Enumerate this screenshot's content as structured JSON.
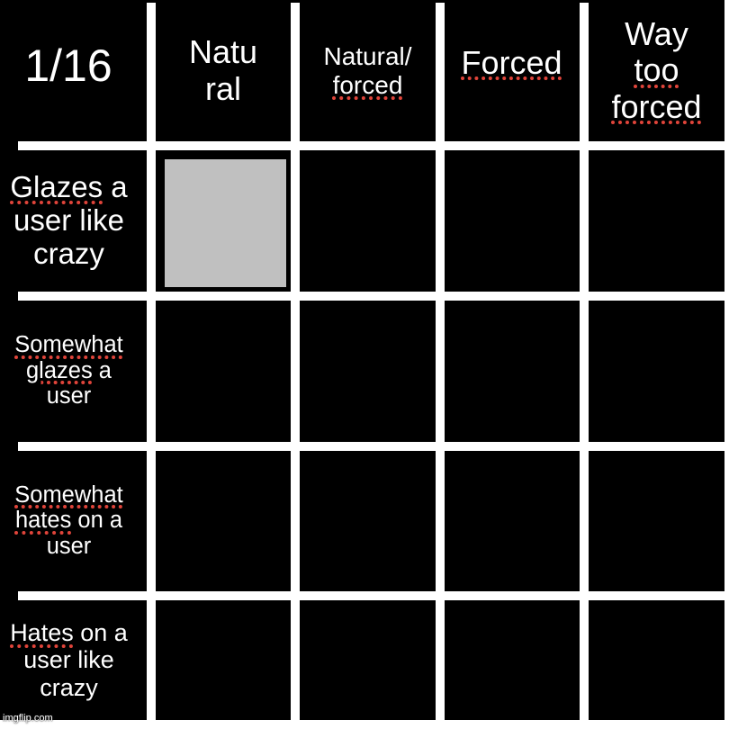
{
  "counter": "1/16",
  "columns": [
    {
      "lines": [
        [
          {
            "t": "Natu",
            "u": false
          }
        ],
        [
          {
            "t": "ral",
            "u": false
          }
        ]
      ]
    },
    {
      "lines": [
        [
          {
            "t": "Natural/",
            "u": false
          }
        ],
        [
          {
            "t": "forced",
            "u": true
          }
        ]
      ]
    },
    {
      "lines": [
        [
          {
            "t": "Forced",
            "u": true
          }
        ]
      ]
    },
    {
      "lines": [
        [
          {
            "t": "Way",
            "u": false
          }
        ],
        [
          {
            "t": "too",
            "u": true
          }
        ],
        [
          {
            "t": "forced",
            "u": true
          }
        ]
      ]
    }
  ],
  "rows": [
    {
      "lines": [
        [
          {
            "t": "Glazes",
            "u": true
          },
          {
            "t": " a",
            "u": false
          }
        ],
        [
          {
            "t": "user like",
            "u": false
          }
        ],
        [
          {
            "t": "crazy",
            "u": false
          }
        ]
      ]
    },
    {
      "lines": [
        [
          {
            "t": "Somewhat",
            "u": true
          }
        ],
        [
          {
            "t": "glazes",
            "u": true
          },
          {
            "t": " a",
            "u": false
          }
        ],
        [
          {
            "t": "user",
            "u": false
          }
        ]
      ]
    },
    {
      "lines": [
        [
          {
            "t": "Somewhat",
            "u": true
          }
        ],
        [
          {
            "t": "hates",
            "u": true
          },
          {
            "t": " on a",
            "u": false
          }
        ],
        [
          {
            "t": "user",
            "u": false
          }
        ]
      ]
    },
    {
      "lines": [
        [
          {
            "t": "Hates",
            "u": true
          },
          {
            "t": " on a",
            "u": false
          }
        ],
        [
          {
            "t": "user like",
            "u": false
          }
        ],
        [
          {
            "t": "crazy",
            "u": false
          }
        ]
      ]
    }
  ],
  "selection": {
    "row": 0,
    "column": 0,
    "color": "#c0c0c0"
  },
  "colors": {
    "background": "#000000",
    "grid": "#ffffff",
    "spellcheck": "#e0443a"
  },
  "watermark": "imgflip.com"
}
